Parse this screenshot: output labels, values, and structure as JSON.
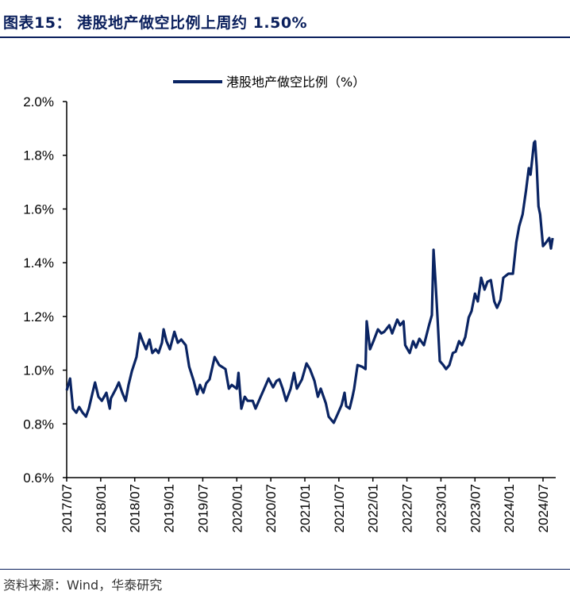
{
  "title": "图表15：  港股地产做空比例上周约 1.50%",
  "source": "资料来源：Wind，华泰研究",
  "chart_data": {
    "type": "line",
    "title": "港股地产做空比例上周约 1.50%",
    "xlabel": "",
    "ylabel": "",
    "x_unit": "months since 2017/07",
    "ylim": [
      0.6,
      2.0
    ],
    "yticks": [
      "0.6%",
      "0.8%",
      "1.0%",
      "1.2%",
      "1.4%",
      "1.6%",
      "1.8%",
      "2.0%"
    ],
    "ytick_values": [
      0.6,
      0.8,
      1.0,
      1.2,
      1.4,
      1.6,
      1.8,
      2.0
    ],
    "xticks": [
      "2017/07",
      "2018/01",
      "2018/07",
      "2019/01",
      "2019/07",
      "2020/01",
      "2020/07",
      "2021/01",
      "2021/07",
      "2022/01",
      "2022/07",
      "2023/01",
      "2023/07",
      "2024/01",
      "2024/07"
    ],
    "legend": "top-center",
    "grid": false,
    "series": [
      {
        "name": "港股地产做空比例（%）",
        "color": "#0a2463",
        "points": [
          [
            0,
            0.925
          ],
          [
            0.6,
            0.969
          ],
          [
            1.1,
            0.857
          ],
          [
            1.7,
            0.842
          ],
          [
            2.2,
            0.863
          ],
          [
            2.8,
            0.842
          ],
          [
            3.4,
            0.827
          ],
          [
            3.9,
            0.857
          ],
          [
            4.5,
            0.91
          ],
          [
            5.0,
            0.954
          ],
          [
            5.6,
            0.901
          ],
          [
            6.2,
            0.886
          ],
          [
            7.0,
            0.916
          ],
          [
            7.6,
            0.857
          ],
          [
            7.8,
            0.895
          ],
          [
            8.7,
            0.931
          ],
          [
            9.2,
            0.954
          ],
          [
            9.8,
            0.916
          ],
          [
            10.4,
            0.886
          ],
          [
            10.9,
            0.945
          ],
          [
            11.5,
            0.996
          ],
          [
            12.3,
            1.049
          ],
          [
            12.9,
            1.137
          ],
          [
            13.4,
            1.108
          ],
          [
            14.0,
            1.078
          ],
          [
            14.6,
            1.114
          ],
          [
            15.1,
            1.064
          ],
          [
            15.7,
            1.078
          ],
          [
            16.2,
            1.064
          ],
          [
            16.8,
            1.102
          ],
          [
            17.1,
            1.152
          ],
          [
            17.6,
            1.108
          ],
          [
            18.2,
            1.078
          ],
          [
            19.0,
            1.143
          ],
          [
            19.6,
            1.102
          ],
          [
            20.2,
            1.114
          ],
          [
            21.0,
            1.093
          ],
          [
            21.6,
            1.013
          ],
          [
            22.4,
            0.96
          ],
          [
            23.0,
            0.91
          ],
          [
            23.5,
            0.945
          ],
          [
            24.1,
            0.916
          ],
          [
            24.6,
            0.951
          ],
          [
            25.2,
            0.966
          ],
          [
            26.1,
            1.049
          ],
          [
            26.9,
            1.019
          ],
          [
            28.0,
            1.004
          ],
          [
            28.6,
            0.931
          ],
          [
            29.1,
            0.945
          ],
          [
            30.0,
            0.931
          ],
          [
            30.3,
            0.99
          ],
          [
            30.8,
            0.857
          ],
          [
            31.4,
            0.901
          ],
          [
            31.9,
            0.886
          ],
          [
            32.8,
            0.886
          ],
          [
            33.3,
            0.857
          ],
          [
            34.2,
            0.901
          ],
          [
            34.7,
            0.925
          ],
          [
            35.6,
            0.969
          ],
          [
            36.4,
            0.936
          ],
          [
            37.0,
            0.96
          ],
          [
            37.5,
            0.966
          ],
          [
            38.1,
            0.931
          ],
          [
            38.7,
            0.886
          ],
          [
            39.5,
            0.931
          ],
          [
            40.1,
            0.99
          ],
          [
            40.6,
            0.931
          ],
          [
            41.5,
            0.966
          ],
          [
            42.3,
            1.025
          ],
          [
            42.9,
            1.004
          ],
          [
            43.7,
            0.96
          ],
          [
            44.3,
            0.901
          ],
          [
            44.8,
            0.931
          ],
          [
            45.7,
            0.877
          ],
          [
            46.2,
            0.827
          ],
          [
            47.1,
            0.804
          ],
          [
            47.9,
            0.842
          ],
          [
            48.5,
            0.871
          ],
          [
            49.0,
            0.916
          ],
          [
            49.3,
            0.866
          ],
          [
            49.9,
            0.857
          ],
          [
            50.4,
            0.901
          ],
          [
            50.7,
            0.931
          ],
          [
            51.3,
            1.019
          ],
          [
            52.1,
            1.013
          ],
          [
            52.7,
            1.004
          ],
          [
            52.9,
            1.182
          ],
          [
            53.5,
            1.078
          ],
          [
            54.1,
            1.108
          ],
          [
            54.9,
            1.152
          ],
          [
            55.5,
            1.137
          ],
          [
            56.0,
            1.143
          ],
          [
            56.9,
            1.167
          ],
          [
            57.4,
            1.137
          ],
          [
            58.3,
            1.188
          ],
          [
            58.8,
            1.167
          ],
          [
            59.4,
            1.182
          ],
          [
            59.7,
            1.093
          ],
          [
            60.5,
            1.064
          ],
          [
            61.1,
            1.108
          ],
          [
            61.6,
            1.084
          ],
          [
            62.2,
            1.117
          ],
          [
            63.0,
            1.093
          ],
          [
            63.9,
            1.167
          ],
          [
            64.4,
            1.205
          ],
          [
            64.7,
            1.448
          ],
          [
            65.0,
            1.344
          ],
          [
            65.4,
            1.196
          ],
          [
            65.8,
            1.034
          ],
          [
            66.4,
            1.019
          ],
          [
            66.9,
            1.004
          ],
          [
            67.5,
            1.019
          ],
          [
            68.1,
            1.064
          ],
          [
            68.6,
            1.069
          ],
          [
            69.2,
            1.108
          ],
          [
            69.7,
            1.093
          ],
          [
            70.3,
            1.123
          ],
          [
            70.9,
            1.196
          ],
          [
            71.4,
            1.22
          ],
          [
            72.0,
            1.285
          ],
          [
            72.5,
            1.256
          ],
          [
            73.1,
            1.344
          ],
          [
            73.7,
            1.3
          ],
          [
            74.2,
            1.329
          ],
          [
            74.8,
            1.335
          ],
          [
            75.4,
            1.256
          ],
          [
            75.9,
            1.232
          ],
          [
            76.5,
            1.261
          ],
          [
            77.0,
            1.344
          ],
          [
            77.9,
            1.359
          ],
          [
            78.7,
            1.359
          ],
          [
            79.3,
            1.477
          ],
          [
            79.8,
            1.536
          ],
          [
            80.4,
            1.58
          ],
          [
            81.0,
            1.669
          ],
          [
            81.5,
            1.752
          ],
          [
            81.8,
            1.728
          ],
          [
            82.4,
            1.846
          ],
          [
            82.6,
            1.852
          ],
          [
            82.9,
            1.758
          ],
          [
            83.2,
            1.61
          ],
          [
            83.5,
            1.58
          ],
          [
            84.0,
            1.462
          ],
          [
            84.6,
            1.477
          ],
          [
            85.1,
            1.492
          ],
          [
            85.4,
            1.453
          ],
          [
            85.7,
            1.492
          ]
        ]
      }
    ]
  }
}
